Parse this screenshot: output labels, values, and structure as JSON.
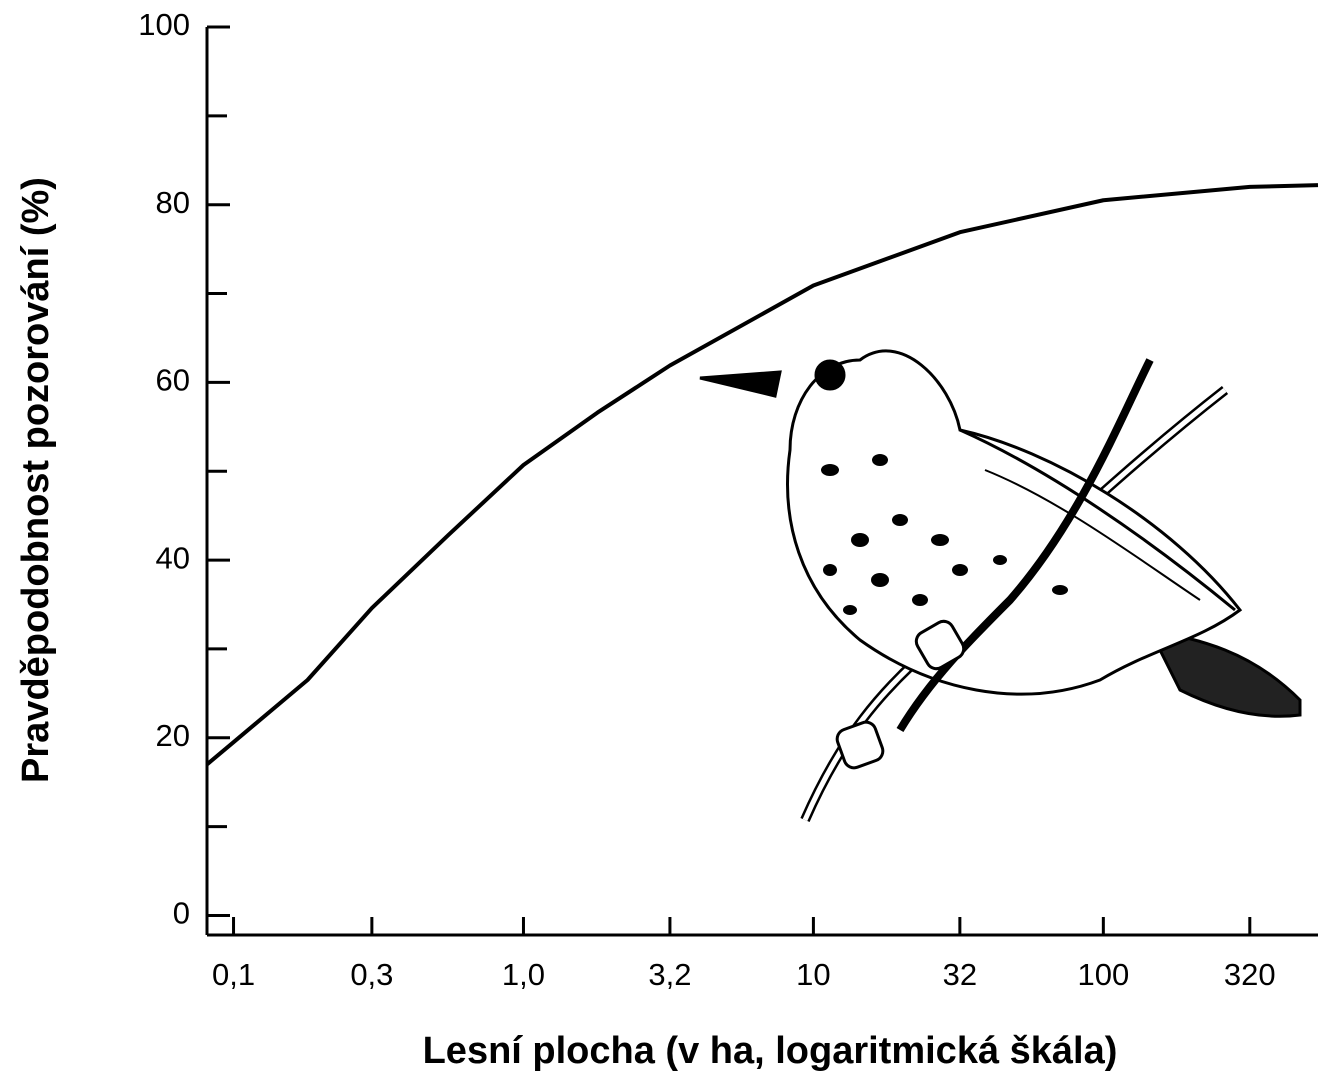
{
  "chart_data": {
    "type": "line",
    "xlabel": "Lesní plocha (v ha, logaritmická škála)",
    "ylabel": "Pravděpodobnost pozorování (%)",
    "x": [
      0.081,
      0.1,
      0.18,
      0.3,
      0.55,
      1.0,
      1.8,
      3.2,
      10,
      32,
      100,
      320,
      550
    ],
    "values": [
      17,
      19.5,
      26.5,
      34.6,
      42.8,
      50.7,
      56.6,
      61.9,
      70.9,
      76.9,
      80.5,
      82,
      82.2
    ],
    "color": "#000000",
    "xscale": "log",
    "xlim": [
      0.081,
      550
    ],
    "xticks": [
      {
        "value": 0.1,
        "label": "0,1"
      },
      {
        "value": 0.3,
        "label": "0,3"
      },
      {
        "value": 1.0,
        "label": "1,0"
      },
      {
        "value": 3.2,
        "label": "3,2"
      },
      10,
      32,
      100,
      320
    ],
    "ylim": [
      -2.2,
      100
    ],
    "yticks": [
      0,
      20,
      40,
      60,
      80,
      100
    ],
    "yminor_ticks": [
      10,
      30,
      50,
      70,
      90
    ],
    "grid": false
  }
}
